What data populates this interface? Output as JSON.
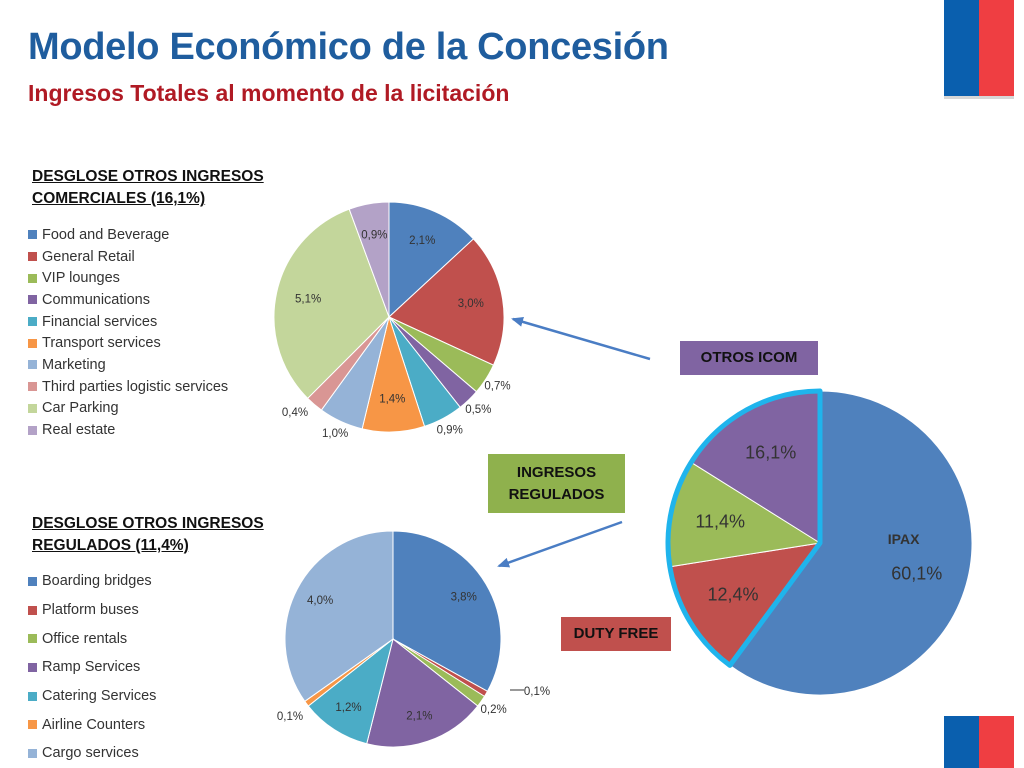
{
  "slide": {
    "title": "Modelo Económico de la Concesión",
    "subtitle": "Ingresos Totales al momento de la licitación",
    "section_com": [
      "DESGLOSE OTROS INGRESOS",
      "COMERCIALES (16,1%)"
    ],
    "section_reg": [
      "DESGLOSE OTROS INGRESOS",
      "REGULADOS (11,4%)"
    ],
    "callouts": {
      "icom": "OTROS ICOM",
      "regulados": [
        "INGRESOS",
        "REGULADOS"
      ],
      "duty_free": "DUTY FREE"
    },
    "flag_colors": {
      "blue": "#0a5fae",
      "red": "#ef3e42"
    }
  },
  "chart_data": [
    {
      "type": "pie",
      "title": "DESGLOSE OTROS INGRESOS COMERCIALES (16,1%)",
      "legend": "left",
      "slices": [
        {
          "name": "Food and Beverage",
          "value": 2.1,
          "label": "2,1%",
          "color": "#4f81bd"
        },
        {
          "name": "General Retail",
          "value": 3.0,
          "label": "3,0%",
          "color": "#c0504d"
        },
        {
          "name": "VIP lounges",
          "value": 0.7,
          "label": "0,7%",
          "color": "#9bbb59"
        },
        {
          "name": "Communications",
          "value": 0.5,
          "label": "0,5%",
          "color": "#8064a2"
        },
        {
          "name": "Financial services",
          "value": 0.9,
          "label": "0,9%",
          "color": "#4bacc6"
        },
        {
          "name": "Transport services",
          "value": 1.4,
          "label": "1,4%",
          "color": "#f79646"
        },
        {
          "name": "Marketing",
          "value": 1.0,
          "label": "1,0%",
          "color": "#95b3d7"
        },
        {
          "name": "Third parties logistic services",
          "value": 0.4,
          "label": "0,4%",
          "color": "#d99694"
        },
        {
          "name": "Car Parking",
          "value": 5.1,
          "label": "5,1%",
          "color": "#c3d69b"
        },
        {
          "name": "Real estate",
          "value": 0.9,
          "label": "0,9%",
          "color": "#b3a2c7"
        }
      ]
    },
    {
      "type": "pie",
      "title": "DESGLOSE OTROS INGRESOS REGULADOS (11,4%)",
      "legend": "left",
      "slices": [
        {
          "name": "Boarding bridges",
          "value": 3.8,
          "label": "3,8%",
          "color": "#4f81bd"
        },
        {
          "name": "Platform buses",
          "value": 0.1,
          "label": "0,1%",
          "color": "#c0504d"
        },
        {
          "name": "Office rentals",
          "value": 0.2,
          "label": "0,2%",
          "color": "#9bbb59"
        },
        {
          "name": "Ramp Services",
          "value": 2.1,
          "label": "2,1%",
          "color": "#8064a2"
        },
        {
          "name": "Catering Services",
          "value": 1.2,
          "label": "1,2%",
          "color": "#4bacc6"
        },
        {
          "name": "Airline Counters",
          "value": 0.1,
          "label": "0,1%",
          "color": "#f79646"
        },
        {
          "name": "Cargo services",
          "value": 4.0,
          "label": "4,0%",
          "color": "#95b3d7"
        }
      ]
    },
    {
      "type": "pie",
      "title": "",
      "slices": [
        {
          "name": "IPAX",
          "value": 60.1,
          "label": "60,1%",
          "color": "#4f81bd"
        },
        {
          "name": "DUTY FREE",
          "value": 12.4,
          "label": "12,4%",
          "color": "#c0504d"
        },
        {
          "name": "INGRESOS REGULADOS",
          "value": 11.4,
          "label": "11,4%",
          "color": "#9bbb59"
        },
        {
          "name": "OTROS ICOM",
          "value": 16.1,
          "label": "16,1%",
          "color": "#8064a2"
        }
      ],
      "highlight": {
        "slices": [
          "DUTY FREE",
          "INGRESOS REGULADOS",
          "OTROS ICOM"
        ],
        "color": "#1fb4ec"
      },
      "inline_label": "IPAX"
    }
  ]
}
